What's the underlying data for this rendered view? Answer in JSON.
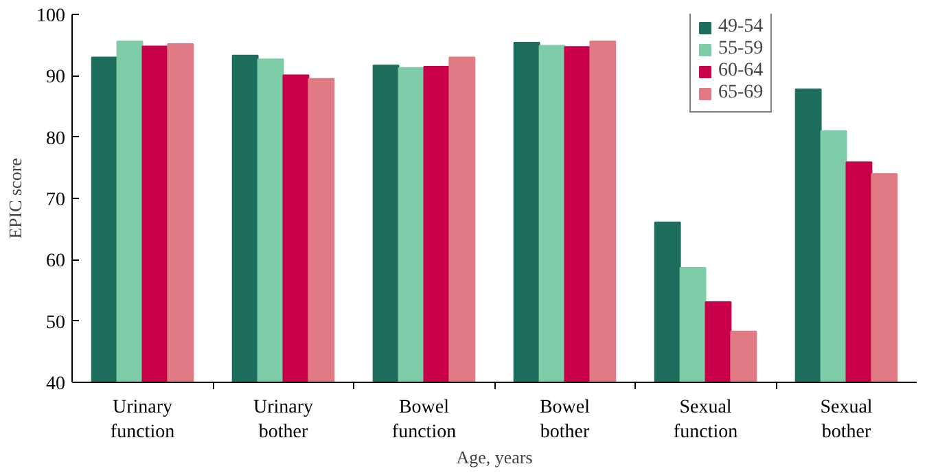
{
  "chart_data": {
    "type": "bar",
    "xlabel": "Age, years",
    "ylabel": "EPIC score",
    "categories": [
      "Urinary function",
      "Urinary bother",
      "Bowel function",
      "Bowel bother",
      "Sexual function",
      "Sexual bother"
    ],
    "series": [
      {
        "name": "49-54",
        "color": "#1e6e5e",
        "values": [
          93.0,
          93.3,
          91.7,
          95.4,
          66.1,
          87.8
        ]
      },
      {
        "name": "55-59",
        "color": "#7fcca8",
        "values": [
          95.6,
          92.7,
          91.3,
          94.9,
          58.7,
          81.0
        ]
      },
      {
        "name": "60-64",
        "color": "#c8004a",
        "values": [
          94.8,
          90.1,
          91.5,
          94.7,
          53.1,
          75.9
        ]
      },
      {
        "name": "65-69",
        "color": "#e07a84",
        "values": [
          95.2,
          89.5,
          93.0,
          95.6,
          48.3,
          74.0
        ]
      }
    ],
    "ylim": [
      40,
      100
    ],
    "yticks": [
      40,
      50,
      60,
      70,
      80,
      90,
      100
    ],
    "grid": false,
    "legend": "top right"
  }
}
